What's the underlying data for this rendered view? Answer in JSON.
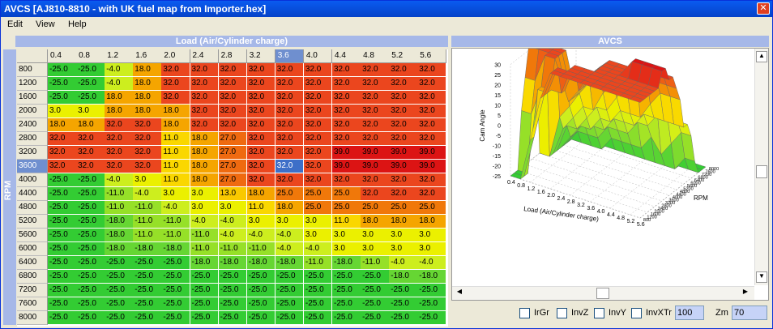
{
  "window": {
    "title": "AVCS [AJ810-8810 - with UK fuel map from Importer.hex]"
  },
  "menu": [
    "Edit",
    "View",
    "Help"
  ],
  "table": {
    "title": "Load (Air/Cylinder charge)",
    "row_axis": "RPM",
    "columns": [
      "0.4",
      "0.8",
      "1.2",
      "1.6",
      "2.0",
      "2.4",
      "2.8",
      "3.2",
      "3.6",
      "4.0",
      "4.4",
      "4.8",
      "5.2",
      "5.6"
    ],
    "rows": [
      {
        "rpm": "800",
        "cells": [
          "-25.0",
          "-25.0",
          "-4.0",
          "18.0",
          "32.0",
          "32.0",
          "32.0",
          "32.0",
          "32.0",
          "32.0",
          "32.0",
          "32.0",
          "32.0",
          "32.0"
        ]
      },
      {
        "rpm": "1200",
        "cells": [
          "-25.0",
          "-25.0",
          "-4.0",
          "18.0",
          "32.0",
          "32.0",
          "32.0",
          "32.0",
          "32.0",
          "32.0",
          "32.0",
          "32.0",
          "32.0",
          "32.0"
        ]
      },
      {
        "rpm": "1600",
        "cells": [
          "-25.0",
          "-25.0",
          "18.0",
          "18.0",
          "32.0",
          "32.0",
          "32.0",
          "32.0",
          "32.0",
          "32.0",
          "32.0",
          "32.0",
          "32.0",
          "32.0"
        ]
      },
      {
        "rpm": "2000",
        "cells": [
          "3.0",
          "3.0",
          "18.0",
          "18.0",
          "18.0",
          "32.0",
          "32.0",
          "32.0",
          "32.0",
          "32.0",
          "32.0",
          "32.0",
          "32.0",
          "32.0"
        ]
      },
      {
        "rpm": "2400",
        "cells": [
          "18.0",
          "18.0",
          "32.0",
          "32.0",
          "18.0",
          "32.0",
          "32.0",
          "32.0",
          "32.0",
          "32.0",
          "32.0",
          "32.0",
          "32.0",
          "32.0"
        ]
      },
      {
        "rpm": "2800",
        "cells": [
          "32.0",
          "32.0",
          "32.0",
          "32.0",
          "11.0",
          "18.0",
          "27.0",
          "32.0",
          "32.0",
          "32.0",
          "32.0",
          "32.0",
          "32.0",
          "32.0"
        ]
      },
      {
        "rpm": "3200",
        "cells": [
          "32.0",
          "32.0",
          "32.0",
          "32.0",
          "11.0",
          "18.0",
          "27.0",
          "32.0",
          "32.0",
          "32.0",
          "39.0",
          "39.0",
          "39.0",
          "39.0"
        ]
      },
      {
        "rpm": "3600",
        "cells": [
          "32.0",
          "32.0",
          "32.0",
          "32.0",
          "11.0",
          "18.0",
          "27.0",
          "32.0",
          "32.0",
          "32.0",
          "39.0",
          "39.0",
          "39.0",
          "39.0"
        ]
      },
      {
        "rpm": "4000",
        "cells": [
          "-25.0",
          "-25.0",
          "-4.0",
          "3.0",
          "11.0",
          "18.0",
          "27.0",
          "32.0",
          "32.0",
          "32.0",
          "32.0",
          "32.0",
          "32.0",
          "32.0"
        ]
      },
      {
        "rpm": "4400",
        "cells": [
          "-25.0",
          "-25.0",
          "-11.0",
          "-4.0",
          "3.0",
          "3.0",
          "13.0",
          "18.0",
          "25.0",
          "25.0",
          "25.0",
          "32.0",
          "32.0",
          "32.0"
        ]
      },
      {
        "rpm": "4800",
        "cells": [
          "-25.0",
          "-25.0",
          "-11.0",
          "-11.0",
          "-4.0",
          "3.0",
          "3.0",
          "11.0",
          "18.0",
          "25.0",
          "25.0",
          "25.0",
          "25.0",
          "25.0"
        ]
      },
      {
        "rpm": "5200",
        "cells": [
          "-25.0",
          "-25.0",
          "-18.0",
          "-11.0",
          "-11.0",
          "-4.0",
          "-4.0",
          "3.0",
          "3.0",
          "3.0",
          "11.0",
          "18.0",
          "18.0",
          "18.0"
        ]
      },
      {
        "rpm": "5600",
        "cells": [
          "-25.0",
          "-25.0",
          "-18.0",
          "-11.0",
          "-11.0",
          "-11.0",
          "-4.0",
          "-4.0",
          "-4.0",
          "3.0",
          "3.0",
          "3.0",
          "3.0",
          "3.0"
        ]
      },
      {
        "rpm": "6000",
        "cells": [
          "-25.0",
          "-25.0",
          "-18.0",
          "-18.0",
          "-18.0",
          "-11.0",
          "-11.0",
          "-11.0",
          "-4.0",
          "-4.0",
          "3.0",
          "3.0",
          "3.0",
          "3.0"
        ]
      },
      {
        "rpm": "6400",
        "cells": [
          "-25.0",
          "-25.0",
          "-25.0",
          "-25.0",
          "-25.0",
          "-18.0",
          "-18.0",
          "-18.0",
          "-18.0",
          "-11.0",
          "-18.0",
          "-11.0",
          "-4.0",
          "-4.0"
        ]
      },
      {
        "rpm": "6800",
        "cells": [
          "-25.0",
          "-25.0",
          "-25.0",
          "-25.0",
          "-25.0",
          "-25.0",
          "-25.0",
          "-25.0",
          "-25.0",
          "-25.0",
          "-25.0",
          "-25.0",
          "-18.0",
          "-18.0"
        ]
      },
      {
        "rpm": "7200",
        "cells": [
          "-25.0",
          "-25.0",
          "-25.0",
          "-25.0",
          "-25.0",
          "-25.0",
          "-25.0",
          "-25.0",
          "-25.0",
          "-25.0",
          "-25.0",
          "-25.0",
          "-25.0",
          "-25.0"
        ]
      },
      {
        "rpm": "7600",
        "cells": [
          "-25.0",
          "-25.0",
          "-25.0",
          "-25.0",
          "-25.0",
          "-25.0",
          "-25.0",
          "-25.0",
          "-25.0",
          "-25.0",
          "-25.0",
          "-25.0",
          "-25.0",
          "-25.0"
        ]
      },
      {
        "rpm": "8000",
        "cells": [
          "-25.0",
          "-25.0",
          "-25.0",
          "-25.0",
          "-25.0",
          "-25.0",
          "-25.0",
          "-25.0",
          "-25.0",
          "-25.0",
          "-25.0",
          "-25.0",
          "-25.0",
          "-25.0"
        ]
      }
    ]
  },
  "plot": {
    "title": "AVCS",
    "z_label": "Cam Angle",
    "y_label": "RPM",
    "x_label": "Load (Air/Cylinder charge)",
    "z_ticks": [
      "30",
      "25",
      "20",
      "15",
      "10",
      "5",
      "0",
      "-5",
      "-10",
      "-15",
      "-20",
      "-25"
    ]
  },
  "controls": {
    "checkboxes": [
      "IrGr",
      "InvZ",
      "InvY",
      "InvX"
    ],
    "tr_label": "Tr",
    "tr_value": "100",
    "zm_label": "Zm",
    "zm_value": "70"
  }
}
